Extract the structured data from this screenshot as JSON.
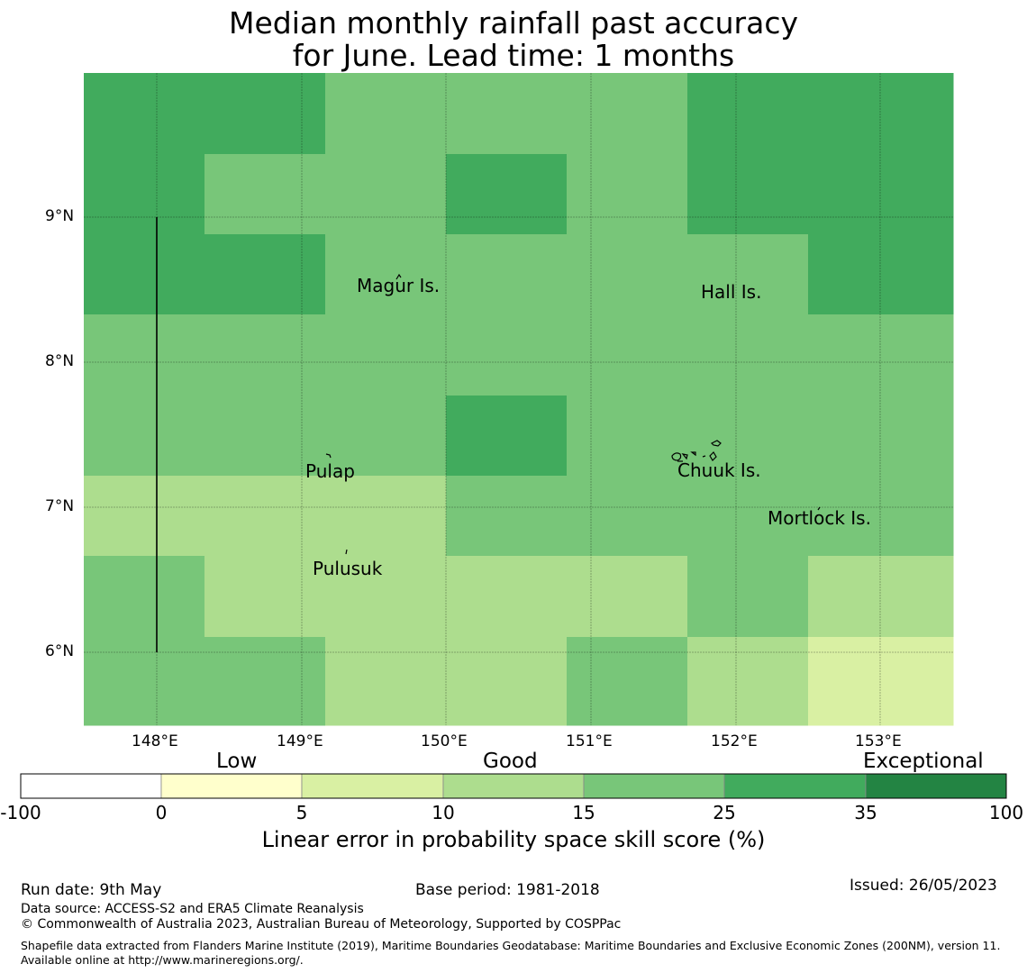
{
  "title_line1": "Median monthly rainfall past accuracy",
  "title_line2": "for June. Lead time: 1 months",
  "map": {
    "lon_ticks": [
      "148°E",
      "149°E",
      "150°E",
      "151°E",
      "152°E",
      "153°E"
    ],
    "lat_ticks": [
      "9°N",
      "8°N",
      "7°N",
      "6°N"
    ],
    "places": [
      {
        "name": "Magur Is."
      },
      {
        "name": "Hall Is."
      },
      {
        "name": "Pulap"
      },
      {
        "name": "Chuuk Is."
      },
      {
        "name": "Mortlock Is."
      },
      {
        "name": "Pulusuk"
      }
    ]
  },
  "colorbar": {
    "categories": [
      "Low",
      "Good",
      "Exceptional"
    ],
    "ticks": [
      "-100",
      "0",
      "5",
      "10",
      "15",
      "25",
      "35",
      "100"
    ],
    "colors": [
      "#ffffff",
      "#ffffcc",
      "#d9f0a3",
      "#addd8e",
      "#78c679",
      "#41ab5d",
      "#238443"
    ],
    "label": "Linear error in probability space skill score (%)"
  },
  "grid_colors": {
    "A": "#41ab5d",
    "B": "#78c679",
    "C": "#addd8e",
    "D": "#d9f0a3"
  },
  "grid": [
    [
      "A",
      "A",
      "B",
      "B",
      "B",
      "A",
      "A"
    ],
    [
      "A",
      "B",
      "B",
      "A",
      "B",
      "A",
      "A"
    ],
    [
      "A",
      "A",
      "B",
      "B",
      "B",
      "B",
      "A"
    ],
    [
      "B",
      "B",
      "B",
      "B",
      "B",
      "B",
      "B"
    ],
    [
      "B",
      "B",
      "B",
      "A",
      "B",
      "B",
      "B"
    ],
    [
      "C",
      "C",
      "C",
      "B",
      "B",
      "B",
      "B"
    ],
    [
      "B",
      "C",
      "C",
      "C",
      "C",
      "B",
      "C"
    ],
    [
      "B",
      "B",
      "C",
      "C",
      "B",
      "C",
      "D"
    ]
  ],
  "footer": {
    "run_date": "Run date: 9th May",
    "base_period": "Base period: 1981-2018",
    "issued": "Issued: 26/05/2023",
    "data_source": "Data source: ACCESS-S2 and ERA5 Climate Reanalysis",
    "copyright": "© Commonwealth of Australia 2023, Australian Bureau of Meteorology, Supported by COSPPac",
    "shapefile": "Shapefile data extracted from Flanders Marine Institute (2019), Maritime Boundaries Geodatabase: Maritime Boundaries and Exclusive Economic Zones (200NM), version 11. Available online at http://www.marineregions.org/."
  }
}
